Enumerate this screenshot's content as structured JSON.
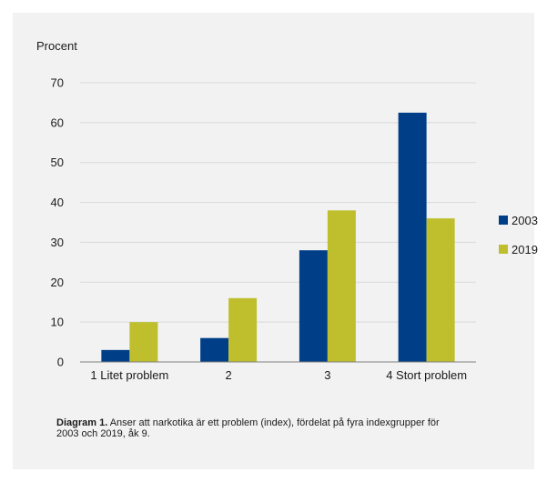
{
  "caption": {
    "label": "Diagram 1.",
    "text": " Anser att narkotika är ett problem (index), fördelat på fyra indexgrupper för 2003 och 2019, åk 9."
  },
  "colors": {
    "2003": "#003f87",
    "2019": "#bfbf2e",
    "grid": "#d9d9d9",
    "axis": "#808080"
  },
  "chart_data": {
    "type": "bar",
    "title": "",
    "ylabel": "Procent",
    "xlabel": "",
    "categories": [
      "1 Litet problem",
      "2",
      "3",
      "4 Stort problem"
    ],
    "series": [
      {
        "name": "2003",
        "values": [
          3,
          6,
          28,
          62.5
        ]
      },
      {
        "name": "2019",
        "values": [
          10,
          16,
          38,
          36
        ]
      }
    ],
    "ylim": [
      0,
      70
    ],
    "yticks": [
      0,
      10,
      20,
      30,
      40,
      50,
      60,
      70
    ],
    "grid": true,
    "legend": "right"
  }
}
